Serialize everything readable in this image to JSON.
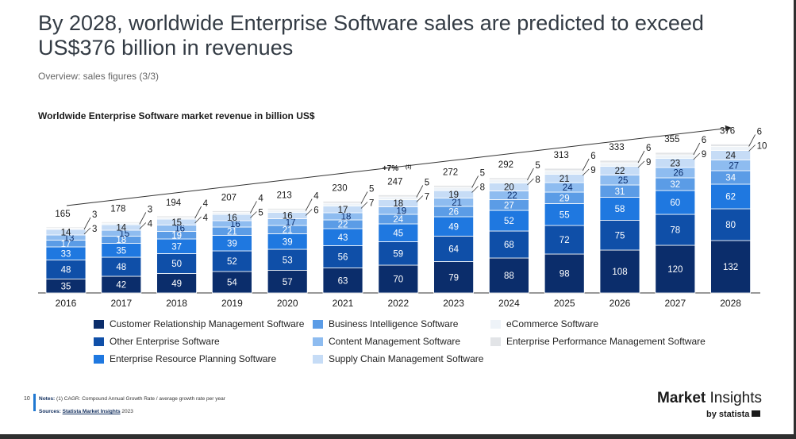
{
  "header": {
    "title": "By 2028, worldwide Enterprise Software sales are predicted to exceed US$376 billion in revenues",
    "subtitle": "Overview: sales figures (3/3)"
  },
  "chart_data": {
    "type": "bar",
    "stacked": true,
    "title": "Worldwide Enterprise Software market revenue in billion US$",
    "xlabel": "",
    "ylabel": "",
    "categories": [
      "2016",
      "2017",
      "2018",
      "2019",
      "2020",
      "2021",
      "2022",
      "2023",
      "2024",
      "2025",
      "2026",
      "2027",
      "2028"
    ],
    "totals": [
      165,
      178,
      194,
      207,
      213,
      230,
      247,
      272,
      292,
      313,
      333,
      355,
      376
    ],
    "series": [
      {
        "name": "Customer Relationship Management Software",
        "color": "#0b2d6b",
        "values": [
          35,
          42,
          49,
          54,
          57,
          63,
          70,
          79,
          88,
          98,
          108,
          120,
          132
        ]
      },
      {
        "name": "Other Enterprise Software",
        "color": "#0f4fa8",
        "values": [
          48,
          48,
          50,
          52,
          53,
          56,
          59,
          64,
          68,
          72,
          75,
          78,
          80
        ]
      },
      {
        "name": "Enterprise Resource Planning Software",
        "color": "#1f78e0",
        "values": [
          33,
          35,
          37,
          39,
          39,
          43,
          45,
          49,
          52,
          55,
          58,
          60,
          62
        ]
      },
      {
        "name": "Business Intelligence Software",
        "color": "#5b9ce6",
        "values": [
          17,
          18,
          19,
          21,
          21,
          22,
          24,
          26,
          27,
          29,
          31,
          32,
          34
        ]
      },
      {
        "name": "Content Management Software",
        "color": "#8ebcf0",
        "values": [
          13,
          15,
          16,
          16,
          17,
          18,
          19,
          21,
          22,
          24,
          25,
          26,
          27
        ]
      },
      {
        "name": "Supply Chain Management Software",
        "color": "#c6dcf6",
        "values": [
          14,
          14,
          15,
          16,
          16,
          17,
          18,
          19,
          20,
          21,
          22,
          23,
          24
        ]
      },
      {
        "name": "eCommerce Software",
        "color": "#eef3f8",
        "values": [
          3,
          4,
          4,
          5,
          6,
          7,
          7,
          8,
          8,
          9,
          9,
          9,
          10
        ]
      },
      {
        "name": "Enterprise Performance Management Software",
        "color": "#e2e4e7",
        "values": [
          3,
          3,
          4,
          4,
          4,
          5,
          5,
          5,
          5,
          6,
          6,
          6,
          6
        ]
      }
    ],
    "annotation": "+7%",
    "annotation_note": "(1)",
    "legend_position": "bottom",
    "grid": false
  },
  "legend": [
    {
      "label": "Customer Relationship Management Software",
      "color": "#0b2d6b"
    },
    {
      "label": "Business Intelligence Software",
      "color": "#5b9ce6"
    },
    {
      "label": "eCommerce Software",
      "color": "#eef3f8"
    },
    {
      "label": "Other Enterprise Software",
      "color": "#0f4fa8"
    },
    {
      "label": "Content Management Software",
      "color": "#8ebcf0"
    },
    {
      "label": "Enterprise Performance Management Software",
      "color": "#e2e4e7"
    },
    {
      "label": "Enterprise Resource Planning Software",
      "color": "#1f78e0"
    },
    {
      "label": "Supply Chain Management Software",
      "color": "#c6dcf6"
    }
  ],
  "footer": {
    "page_number": "10",
    "notes_label": "Notes:",
    "notes_text": "(1) CAGR: Compound Annual Growth Rate / average growth rate per year",
    "sources_label": "Sources:",
    "sources_link": "Statista Market Insights",
    "sources_year": "2023",
    "brand_main": "Market",
    "brand_rest": " Insights",
    "brand_sub": "by statista"
  }
}
